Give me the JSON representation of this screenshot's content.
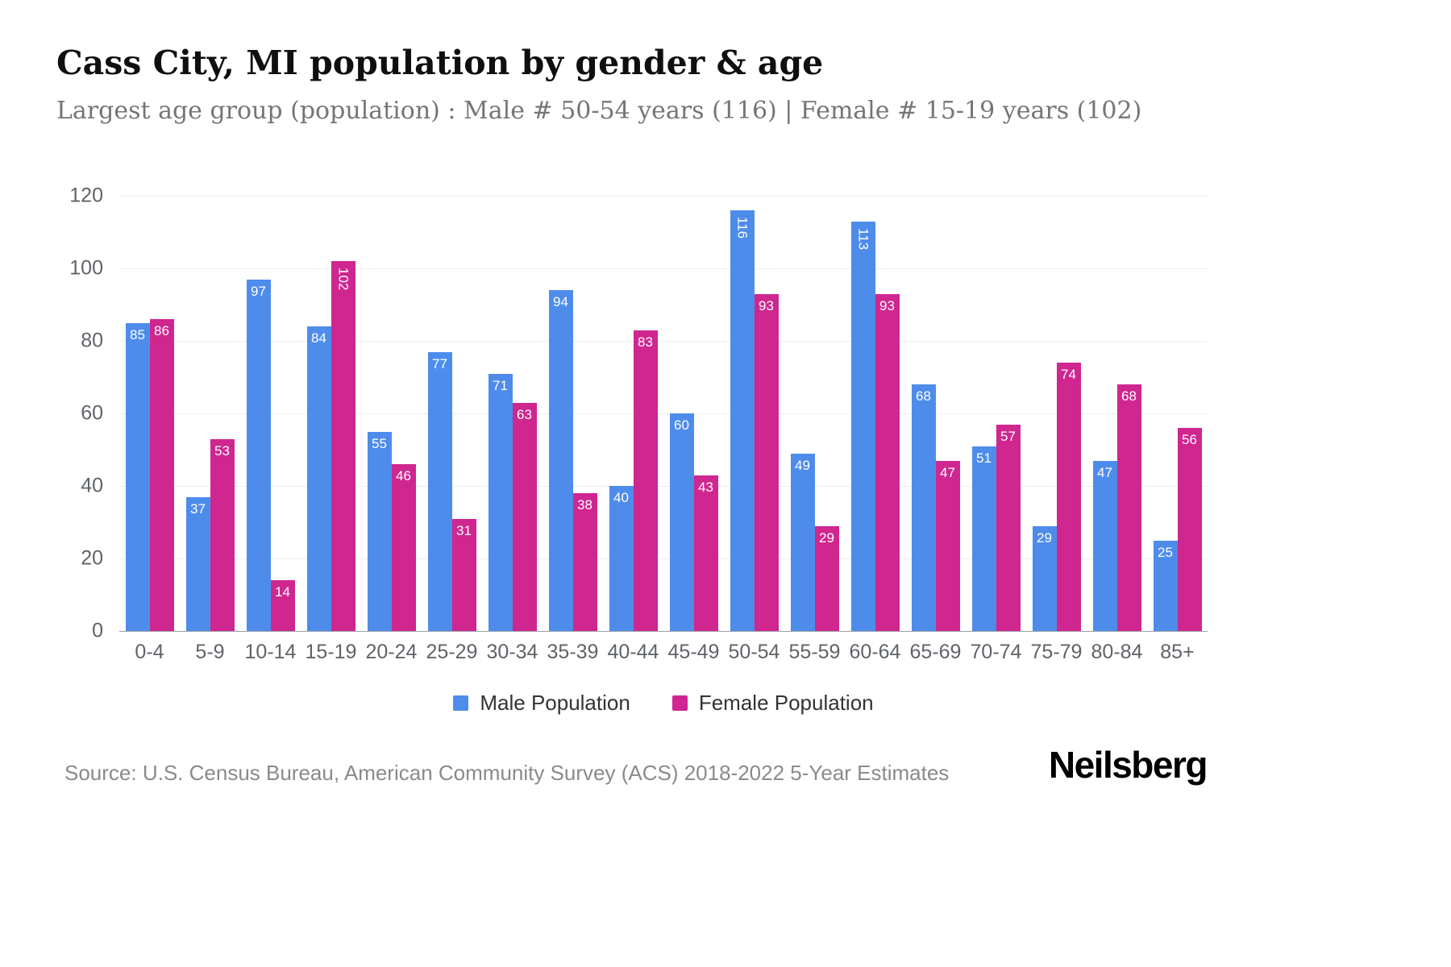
{
  "chart_data": {
    "type": "bar",
    "title": "Cass City, MI population by gender & age",
    "subtitle": "Largest age group (population) : Male # 50-54 years (116) | Female # 15-19 years (102)",
    "categories": [
      "0-4",
      "5-9",
      "10-14",
      "15-19",
      "20-24",
      "25-29",
      "30-34",
      "35-39",
      "40-44",
      "45-49",
      "50-54",
      "55-59",
      "60-64",
      "65-69",
      "70-74",
      "75-79",
      "80-84",
      "85+"
    ],
    "series": [
      {
        "name": "Male Population",
        "color": "#4e8cec",
        "values": [
          85,
          37,
          97,
          84,
          55,
          77,
          71,
          94,
          40,
          60,
          116,
          49,
          113,
          68,
          51,
          29,
          47,
          25
        ]
      },
      {
        "name": "Female Population",
        "color": "#cf2690",
        "values": [
          86,
          53,
          14,
          102,
          46,
          31,
          63,
          38,
          83,
          43,
          93,
          29,
          93,
          47,
          57,
          74,
          68,
          56
        ]
      }
    ],
    "xlabel": "",
    "ylabel": "",
    "ylim": [
      0,
      120
    ],
    "yticks": [
      0,
      20,
      40,
      60,
      80,
      100,
      120
    ],
    "grid": true,
    "legend_position": "bottom",
    "bar_value_labels": true,
    "bar_value_label_color": "#ffffff"
  },
  "footer": {
    "source": "Source: U.S. Census Bureau, American Community Survey (ACS) 2018-2022 5-Year Estimates",
    "brand": "Neilsberg"
  }
}
